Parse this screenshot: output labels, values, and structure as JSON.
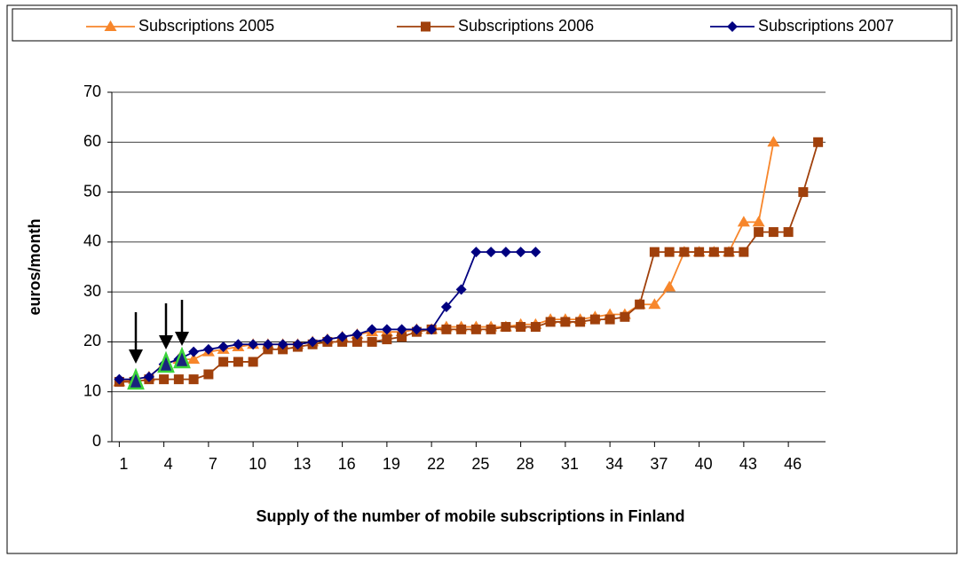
{
  "chart_data": {
    "type": "line",
    "xlabel": "Supply of the number of mobile subscriptions in Finland",
    "ylabel": "euros/month",
    "x": [
      1,
      2,
      3,
      4,
      5,
      6,
      7,
      8,
      9,
      10,
      11,
      12,
      13,
      14,
      15,
      16,
      17,
      18,
      19,
      20,
      21,
      22,
      23,
      24,
      25,
      26,
      27,
      28,
      29,
      30,
      31,
      32,
      33,
      34,
      35,
      36,
      37,
      38,
      39,
      40,
      41,
      42,
      43,
      44,
      45,
      46,
      47,
      48
    ],
    "xlim": [
      0.5,
      48.5
    ],
    "xticks": [
      1,
      4,
      7,
      10,
      13,
      16,
      19,
      22,
      25,
      28,
      31,
      34,
      37,
      40,
      43,
      46
    ],
    "ylim": [
      0,
      70
    ],
    "yticks": [
      0,
      10,
      20,
      30,
      40,
      50,
      60,
      70
    ],
    "grid": true,
    "legend": "top",
    "series": [
      {
        "name": "Subscriptions 2005",
        "color": "#f7862b",
        "marker": "triangle",
        "values": [
          12,
          12.5,
          13,
          15.5,
          16.5,
          16.5,
          18,
          18.5,
          19,
          19.5,
          19.5,
          19.5,
          19.5,
          20,
          20.5,
          21,
          21.5,
          22,
          22,
          22,
          22.5,
          22.5,
          23,
          23,
          23,
          23,
          23,
          23.5,
          23.5,
          24.5,
          24.5,
          24.5,
          25,
          25.5,
          25.5,
          27.5,
          27.5,
          31,
          38,
          38,
          38,
          38,
          44,
          44,
          60,
          null,
          null,
          null
        ]
      },
      {
        "name": "Subscriptions 2006",
        "color": "#a0400b",
        "marker": "square",
        "values": [
          12,
          12,
          12.5,
          12.5,
          12.5,
          12.5,
          13.5,
          16,
          16,
          16,
          18.5,
          18.5,
          19,
          19.5,
          20,
          20,
          20,
          20,
          20.5,
          21,
          22,
          22.5,
          22.5,
          22.5,
          22.5,
          22.5,
          23,
          23,
          23,
          24,
          24,
          24,
          24.5,
          24.5,
          25,
          27.5,
          38,
          38,
          38,
          38,
          38,
          38,
          38,
          42,
          42,
          42,
          50,
          60
        ]
      },
      {
        "name": "Subscriptions 2007",
        "color": "#000080",
        "marker": "diamond",
        "values": [
          12.5,
          12.5,
          13,
          15.5,
          16.5,
          18,
          18.5,
          19,
          19.5,
          19.5,
          19.5,
          19.5,
          19.5,
          20,
          20.5,
          21,
          21.5,
          22.5,
          22.5,
          22.5,
          22.5,
          22.5,
          27,
          30.5,
          38,
          38,
          38,
          38,
          38,
          null,
          null,
          null,
          null,
          null,
          null,
          null,
          null,
          null,
          null,
          null,
          null,
          null,
          null,
          null,
          null,
          null,
          null,
          null
        ]
      }
    ]
  }
}
